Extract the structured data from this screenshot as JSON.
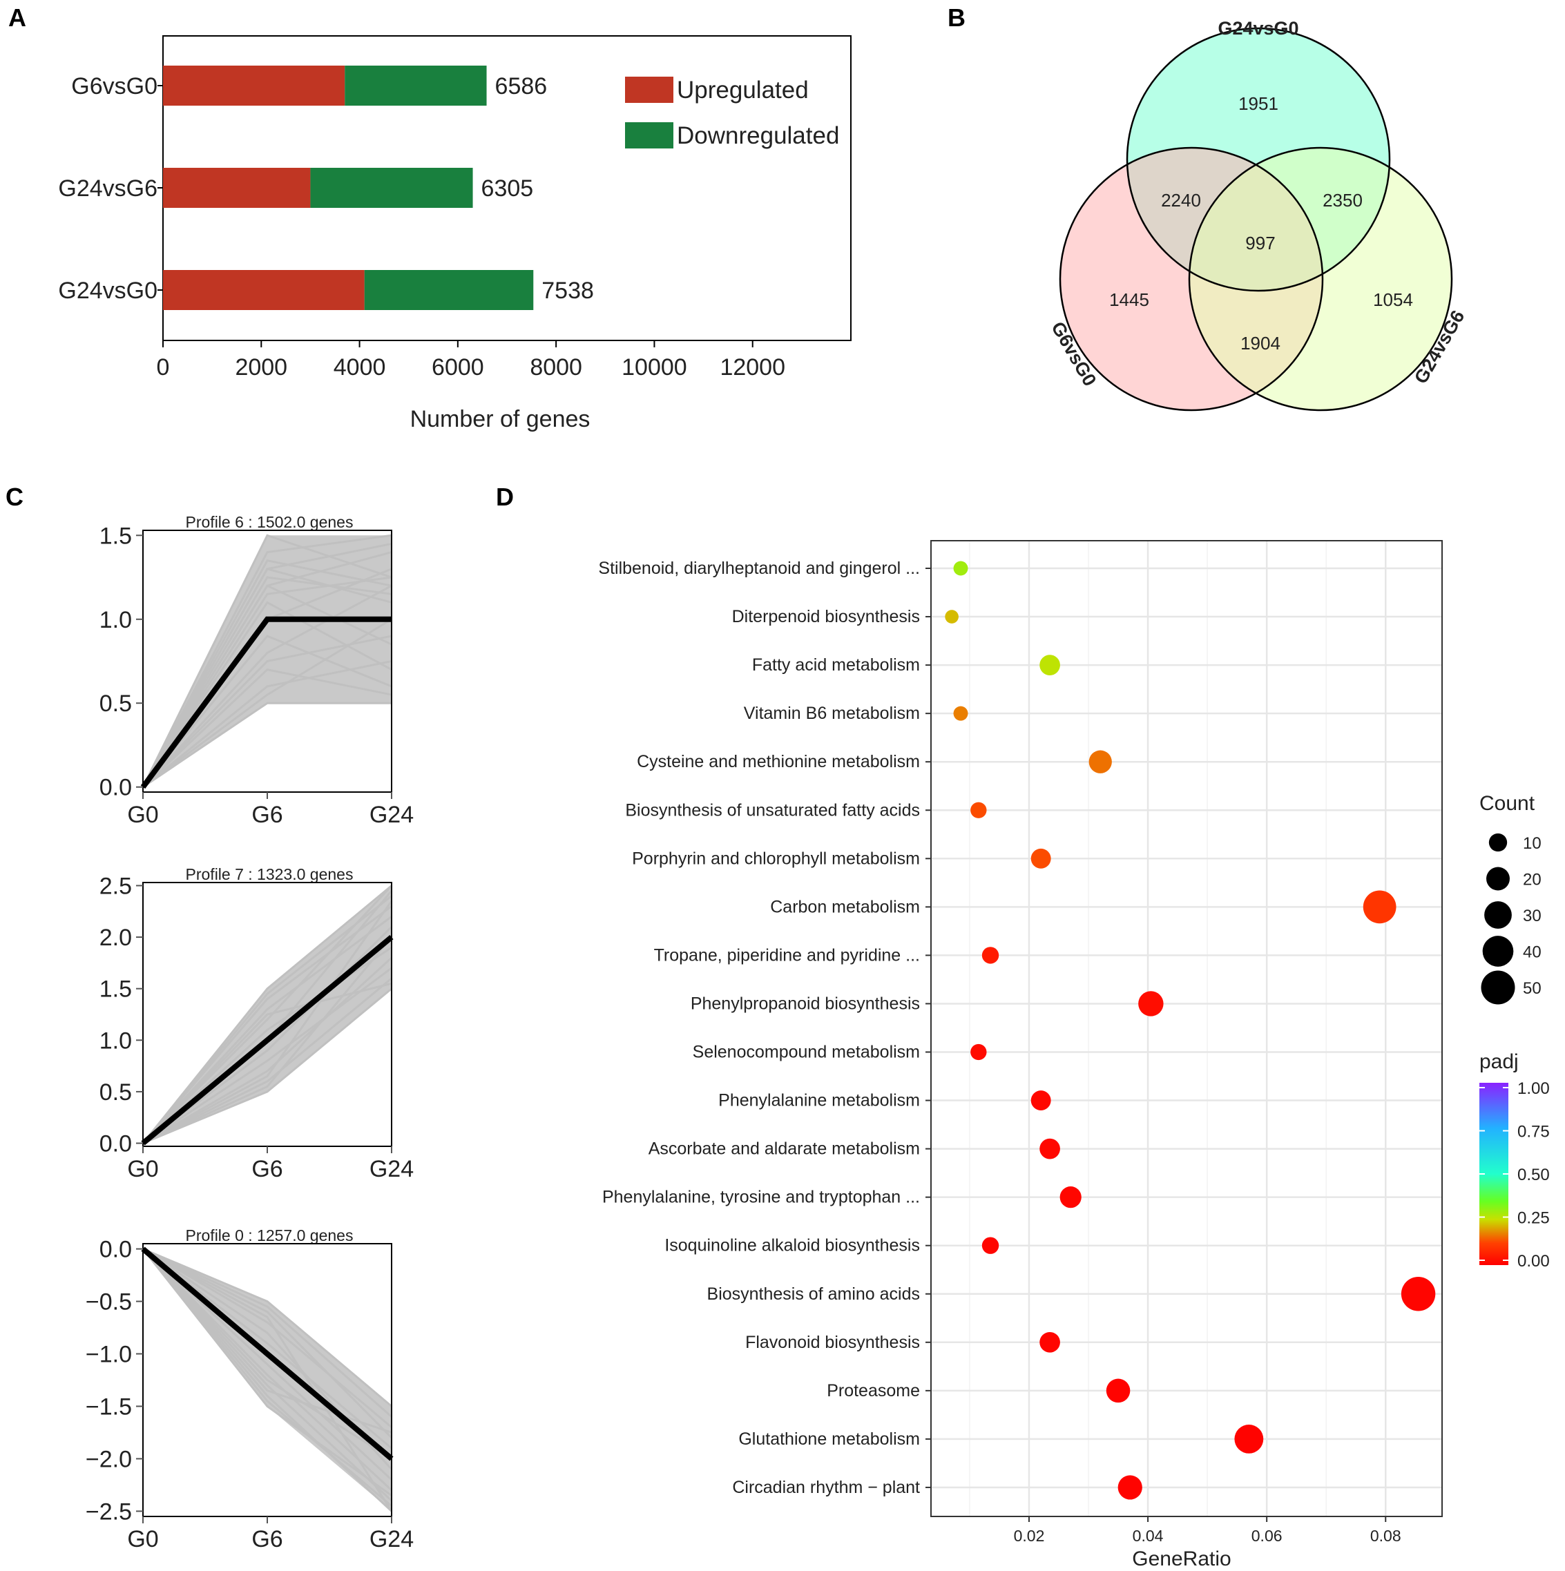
{
  "panels": {
    "a": "A",
    "b": "B",
    "c": "C",
    "d": "D"
  },
  "colors": {
    "up": "#c03623",
    "down": "#19803e",
    "venn_g24vsg0": "#b3ffe6",
    "venn_g6vsg0": "#ffb3b3",
    "venn_g24vsg6": "#e6ffb3",
    "profile_gene": "#c0c0c0",
    "profile_model": "#000000"
  },
  "chart_data": [
    {
      "id": "panel-a",
      "type": "bar",
      "orientation": "horizontal",
      "stacked": true,
      "categories": [
        "G6vsG0",
        "G24vsG6",
        "G24vsG0"
      ],
      "series": [
        {
          "name": "Upregulated",
          "values": [
            3700,
            3000,
            4100
          ]
        },
        {
          "name": "Downregulated",
          "values": [
            2886,
            3305,
            3438
          ]
        }
      ],
      "totals": [
        "6586",
        "6305",
        "7538"
      ],
      "xlabel": "Number of genes",
      "xlim": [
        0,
        14000
      ],
      "xticks": [
        0,
        2000,
        4000,
        6000,
        8000,
        10000,
        12000
      ],
      "legend": [
        "Upregulated",
        "Downregulated"
      ]
    },
    {
      "id": "panel-b",
      "type": "venn",
      "sets": [
        "G24vsG0",
        "G6vsG0",
        "G24vsG6"
      ],
      "regions": {
        "only_g24vsg0": "1951",
        "only_g6vsg0": "1445",
        "only_g24vsg6": "1054",
        "g24vsg0_g6vsg0": "2240",
        "g24vsg0_g24vsg6": "2350",
        "g6vsg0_g24vsg6": "1904",
        "all_three": "997"
      }
    },
    {
      "id": "panel-c",
      "type": "line",
      "x": [
        "G0",
        "G6",
        "G24"
      ],
      "profiles": [
        {
          "title": "Profile 6 : 1502.0 genes",
          "model": [
            0,
            1,
            1
          ],
          "genes": [
            [
              0,
              1.5,
              1.25
            ],
            [
              0,
              1.4,
              1.5
            ],
            [
              0,
              1.35,
              1.2
            ],
            [
              0,
              1.3,
              1.45
            ],
            [
              0,
              1.25,
              1.15
            ],
            [
              0,
              1.2,
              1.4
            ],
            [
              0,
              1.15,
              1.25
            ],
            [
              0,
              1.3,
              1.1
            ],
            [
              0,
              0.5,
              0.5
            ],
            [
              0,
              0.6,
              0.75
            ],
            [
              0,
              0.7,
              0.55
            ],
            [
              0,
              0.8,
              1.2
            ],
            [
              0,
              0.9,
              0.6
            ],
            [
              0,
              1.1,
              0.7
            ],
            [
              0,
              0.55,
              1.0
            ],
            [
              0,
              0.75,
              0.9
            ],
            [
              0,
              1.0,
              1.3
            ],
            [
              0,
              1.2,
              0.85
            ]
          ],
          "yticks": [
            0.0,
            0.5,
            1.0,
            1.5
          ],
          "ytick_labels": [
            "0.0",
            "0.5",
            "1.0",
            "1.5"
          ],
          "ylim": [
            -0.03,
            1.53
          ]
        },
        {
          "title": "Profile 7 : 1323.0 genes",
          "model": [
            0,
            1,
            2
          ],
          "genes": [
            [
              0,
              1.5,
              2.5
            ],
            [
              0,
              1.45,
              2.4
            ],
            [
              0,
              1.4,
              2.3
            ],
            [
              0,
              1.3,
              2.2
            ],
            [
              0,
              1.2,
              2.5
            ],
            [
              0,
              0.5,
              1.5
            ],
            [
              0,
              0.6,
              1.6
            ],
            [
              0,
              0.7,
              1.8
            ],
            [
              0,
              0.8,
              1.7
            ],
            [
              0,
              0.9,
              2.1
            ],
            [
              0,
              1.1,
              1.9
            ],
            [
              0,
              0.55,
              2.0
            ],
            [
              0,
              1.0,
              2.45
            ],
            [
              0,
              1.25,
              1.55
            ],
            [
              0,
              0.65,
              2.35
            ]
          ],
          "yticks": [
            0.0,
            0.5,
            1.0,
            1.5,
            2.0,
            2.5
          ],
          "ytick_labels": [
            "0.0",
            "0.5",
            "1.0",
            "1.5",
            "2.0",
            "2.5"
          ],
          "ylim": [
            -0.03,
            2.53
          ]
        },
        {
          "title": "Profile 0 : 1257.0 genes",
          "model": [
            0,
            -1,
            -2
          ],
          "genes": [
            [
              0,
              -0.5,
              -1.5
            ],
            [
              0,
              -0.55,
              -1.6
            ],
            [
              0,
              -0.6,
              -1.8
            ],
            [
              0,
              -0.7,
              -1.7
            ],
            [
              0,
              -0.8,
              -2.1
            ],
            [
              0,
              -0.9,
              -1.9
            ],
            [
              0,
              -1.1,
              -2.2
            ],
            [
              0,
              -1.2,
              -2.3
            ],
            [
              0,
              -1.3,
              -2.4
            ],
            [
              0,
              -1.4,
              -2.5
            ],
            [
              0,
              -1.45,
              -2.45
            ],
            [
              0,
              -1.5,
              -2.35
            ],
            [
              0,
              -1.35,
              -1.75
            ],
            [
              0,
              -1.25,
              -2.0
            ],
            [
              0,
              -0.65,
              -2.5
            ]
          ],
          "yticks": [
            0.0,
            -0.5,
            -1.0,
            -1.5,
            -2.0,
            -2.5
          ],
          "ytick_labels": [
            "0.0",
            "−0.5",
            "−1.0",
            "−1.5",
            "−2.0",
            "−2.5"
          ],
          "ylim": [
            -2.55,
            0.05
          ]
        }
      ]
    },
    {
      "id": "panel-d",
      "type": "scatter",
      "subtype": "dotplot",
      "xlabel": "GeneRatio",
      "xlim": [
        0.0035,
        0.0895
      ],
      "xticks": [
        0.02,
        0.04,
        0.06,
        0.08
      ],
      "xtick_labels": [
        "0.02",
        "0.04",
        "0.06",
        "0.08"
      ],
      "categories": [
        "Stilbenoid, diarylheptanoid and gingerol ...",
        "Diterpenoid biosynthesis",
        "Fatty acid metabolism",
        "Vitamin B6 metabolism",
        "Cysteine and methionine metabolism",
        "Biosynthesis of unsaturated fatty acids",
        "Porphyrin and chlorophyll metabolism",
        "Carbon metabolism",
        "Tropane, piperidine and pyridine ...",
        "Phenylpropanoid biosynthesis",
        "Selenocompound metabolism",
        "Phenylalanine metabolism",
        "Ascorbate and aldarate metabolism",
        "Phenylalanine, tyrosine and tryptophan ...",
        "Isoquinoline alkaloid biosynthesis",
        "Biosynthesis of amino acids",
        "Flavonoid biosynthesis",
        "Proteasome",
        "Glutathione metabolism",
        "Circadian rhythm − plant"
      ],
      "gene_ratio": [
        0.0085,
        0.007,
        0.0235,
        0.0085,
        0.032,
        0.0115,
        0.022,
        0.079,
        0.0135,
        0.0405,
        0.0115,
        0.022,
        0.0235,
        0.027,
        0.0135,
        0.0855,
        0.0235,
        0.035,
        0.057,
        0.037
      ],
      "count": [
        5,
        4,
        14,
        5,
        19,
        7,
        13,
        47,
        8,
        24,
        7,
        13,
        14,
        16,
        8,
        51,
        14,
        21,
        34,
        22
      ],
      "padj": [
        0.29,
        0.22,
        0.26,
        0.17,
        0.16,
        0.13,
        0.13,
        0.1,
        0.05,
        0.025,
        0.02,
        0.015,
        0.015,
        0.012,
        0.012,
        0.01,
        0.01,
        0.005,
        0.005,
        0.005
      ],
      "size_legend": {
        "title": "Count",
        "values": [
          10,
          20,
          30,
          40,
          50
        ]
      },
      "color_legend": {
        "title": "padj",
        "ticks": [
          "1.00",
          "0.75",
          "0.50",
          "0.25",
          "0.00"
        ]
      }
    }
  ]
}
